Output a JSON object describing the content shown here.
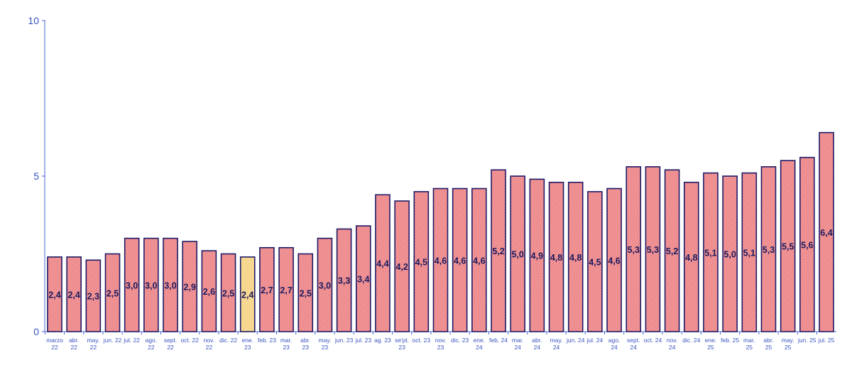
{
  "chart_data": {
    "type": "bar",
    "title": "",
    "xlabel": "",
    "ylabel": "",
    "ylim": [
      0,
      10
    ],
    "yticks": [
      "0",
      "5",
      "10"
    ],
    "grid": false,
    "categories": [
      "marzo\n22",
      "abr.\n22",
      "may.\n22",
      "jun. 22",
      "jul. 22",
      "ago.\n22",
      "sept.\n22",
      "oct. 22",
      "nov.\n22",
      "dic. 22",
      "ene.\n23",
      "feb. 23",
      "mar.\n23",
      "abr.\n23",
      "may.\n23",
      "jun. 23",
      "jul. 23",
      "ag. 23",
      "se'pt.\n23",
      "oct. 23",
      "nov.\n23",
      "dic. 23",
      "ene.\n24",
      "feb. 24",
      "mar.\n24",
      "abr.\n24",
      "may.\n24",
      "jun. 24",
      "jul. 24",
      "ago.\n24",
      "sept.\n24",
      "oct. 24",
      "nov.\n24",
      "dic. 24",
      "ene.\n25",
      "feb. 25",
      "mar.\n25",
      "abr.\n25",
      "may.\n25",
      "jun. 25",
      "jul. 25"
    ],
    "values": [
      2.4,
      2.4,
      2.3,
      2.5,
      3.0,
      3.0,
      3.0,
      2.9,
      2.6,
      2.5,
      2.4,
      2.7,
      2.7,
      2.5,
      3.0,
      3.3,
      3.4,
      4.4,
      4.2,
      4.5,
      4.6,
      4.6,
      4.6,
      5.2,
      5.0,
      4.9,
      4.8,
      4.8,
      4.5,
      4.6,
      5.3,
      5.3,
      5.2,
      4.8,
      5.1,
      5.0,
      5.1,
      5.3,
      5.5,
      5.6,
      6.4
    ],
    "data_labels": [
      "2,4",
      "2,4",
      "2,3",
      "2,5",
      "3,0",
      "3,0",
      "3,0",
      "2,9",
      "2,6",
      "2,5",
      "2,4",
      "2,7",
      "2,7",
      "2,5",
      "3,0",
      "3,3",
      "3,4",
      "4,4",
      "4,2",
      "4,5",
      "4,6",
      "4,6",
      "4,6",
      "5,2",
      "5,0",
      "4,9",
      "4,8",
      "4,8",
      "4,5",
      "4,6",
      "5,3",
      "5,3",
      "5,2",
      "4,8",
      "5,1",
      "5,0",
      "5,1",
      "5,3",
      "5,5",
      "5,6",
      "6,4"
    ],
    "highlighted_index": 10,
    "colors": {
      "bar": "#f08a8a",
      "bar_hatch": "#d94f5a",
      "highlight": "#f7d48a",
      "border": "#1e1a66",
      "axis": "#4a66d0"
    }
  }
}
